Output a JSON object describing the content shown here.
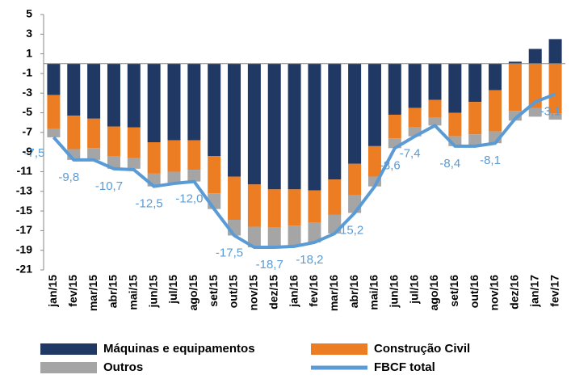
{
  "chart_data": {
    "type": "stacked-bar-line",
    "categories": [
      "jan/15",
      "fev/15",
      "mar/15",
      "abr/15",
      "mai/15",
      "jun/15",
      "jul/15",
      "ago/15",
      "set/15",
      "out/15",
      "nov/15",
      "dez/15",
      "jan/16",
      "fev/16",
      "mar/16",
      "abr/16",
      "mai/16",
      "jun/16",
      "jul/16",
      "ago/16",
      "set/16",
      "out/16",
      "nov/16",
      "dez/16",
      "jan/17",
      "fev/17"
    ],
    "series": [
      {
        "name": "Máquinas e equipamentos",
        "color": "#1f3864",
        "kind": "bar",
        "values": [
          -3.2,
          -5.3,
          -5.6,
          -6.4,
          -6.5,
          -8.0,
          -7.8,
          -7.8,
          -9.4,
          -11.5,
          -12.3,
          -12.8,
          -12.8,
          -12.9,
          -11.8,
          -10.2,
          -8.4,
          -5.2,
          -4.5,
          -3.7,
          -5.0,
          -3.9,
          -2.7,
          0.2,
          1.5,
          2.5
        ]
      },
      {
        "name": "Construção Civil",
        "color": "#ed7d22",
        "kind": "bar",
        "values": [
          -3.4,
          -3.4,
          -3.0,
          -3.0,
          -3.1,
          -3.2,
          -3.2,
          -3.0,
          -3.8,
          -4.4,
          -4.3,
          -3.9,
          -3.7,
          -3.3,
          -3.6,
          -3.2,
          -3.1,
          -2.4,
          -2.0,
          -1.8,
          -2.4,
          -3.3,
          -4.2,
          -4.8,
          -4.5,
          -5.1
        ]
      },
      {
        "name": "Outros",
        "color": "#a5a5a5",
        "kind": "bar",
        "values": [
          -0.9,
          -1.1,
          -1.2,
          -1.3,
          -1.1,
          -1.3,
          -1.2,
          -1.2,
          -1.6,
          -1.6,
          -2.1,
          -2.0,
          -2.1,
          -2.0,
          -1.9,
          -1.8,
          -1.0,
          -1.0,
          -0.9,
          -0.8,
          -1.0,
          -1.2,
          -1.2,
          -1.0,
          -0.9,
          -0.6
        ]
      },
      {
        "name": "FBCF total",
        "color": "#5b9bd5",
        "kind": "line",
        "values": [
          -7.5,
          -9.8,
          -9.8,
          -10.7,
          -10.8,
          -12.5,
          -12.2,
          -12.0,
          -14.8,
          -17.5,
          -18.7,
          -18.7,
          -18.6,
          -18.2,
          -17.3,
          -15.2,
          -12.5,
          -8.6,
          -7.4,
          -6.3,
          -8.4,
          -8.4,
          -8.1,
          -5.6,
          -3.9,
          -3.1
        ],
        "value_labels": [
          "-7,5",
          "-9,8",
          null,
          "-10,7",
          null,
          "-12,5",
          null,
          "-12,0",
          null,
          "-17,5",
          null,
          "-18,7",
          null,
          "-18,2",
          null,
          "-15,2",
          null,
          "-8,6",
          "-7,4",
          null,
          "-8,4",
          null,
          "-8,1",
          null,
          null,
          "-3,1"
        ]
      }
    ],
    "ylim": [
      -21,
      5
    ],
    "yticks": [
      5,
      3,
      1,
      -1,
      -3,
      -5,
      -7,
      -9,
      -11,
      -13,
      -15,
      -17,
      -19,
      -21
    ]
  }
}
